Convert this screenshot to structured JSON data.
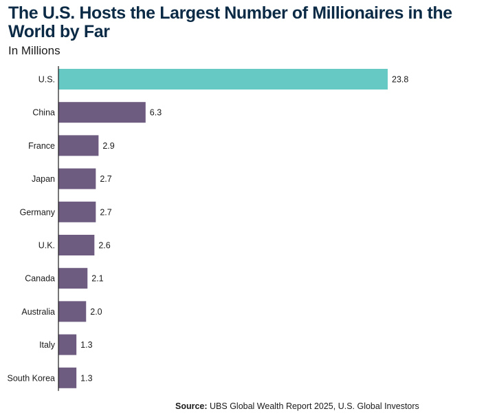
{
  "chart_data": {
    "type": "bar",
    "orientation": "horizontal",
    "title": "The U.S. Hosts the Largest Number of Millionaires in the World by Far",
    "subtitle": "In Millions",
    "categories": [
      "U.S.",
      "China",
      "France",
      "Japan",
      "Germany",
      "U.K.",
      "Canada",
      "Australia",
      "Italy",
      "South Korea"
    ],
    "values": [
      23.8,
      6.3,
      2.9,
      2.7,
      2.7,
      2.6,
      2.1,
      2.0,
      1.3,
      1.3
    ],
    "value_labels": [
      "23.8",
      "6.3",
      "2.9",
      "2.7",
      "2.7",
      "2.6",
      "2.1",
      "2.0",
      "1.3",
      "1.3"
    ],
    "xlim": [
      0,
      23.8
    ],
    "grid": false,
    "colors": {
      "highlight": "#66c9c4",
      "default": "#6d5b80"
    },
    "highlight_index": 0
  },
  "source": {
    "label": "Source:",
    "text": " UBS Global Wealth Report 2025, U.S. Global Investors"
  }
}
